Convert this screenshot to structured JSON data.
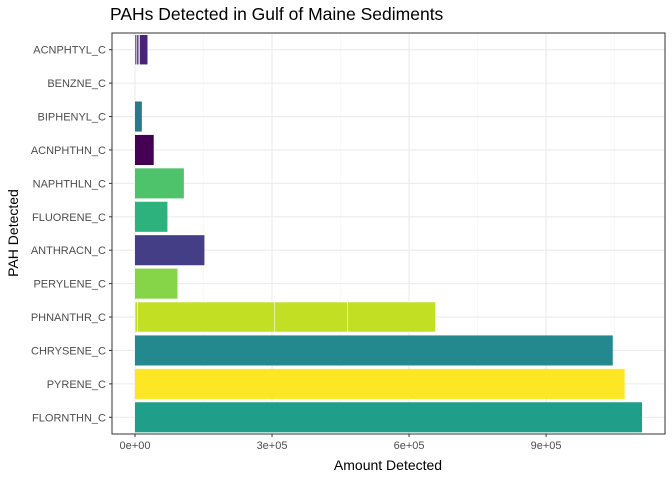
{
  "chart_data": {
    "type": "bar",
    "orientation": "horizontal",
    "title": "PAHs Detected in Gulf of Maine Sediments",
    "xlabel": "Amount Detected",
    "ylabel": "PAH Detected",
    "xlim": [
      0,
      1160000
    ],
    "x_ticks": [
      {
        "value": 0,
        "label": "0e+00"
      },
      {
        "value": 300000,
        "label": "3e+05"
      },
      {
        "value": 600000,
        "label": "6e+05"
      },
      {
        "value": 900000,
        "label": "9e+05"
      }
    ],
    "grid": true,
    "legend": "none",
    "categories": [
      "ACNPHTYL_C",
      "BENZNE_C",
      "BIPHENYL_C",
      "ACNPHTHN_C",
      "NAPHTHLN_C",
      "FLUORENE_C",
      "ANTHRACN_C",
      "PERYLENE_C",
      "PHNANTHR_C",
      "CHRYSENE_C",
      "PYRENE_C",
      "FLORNTHN_C"
    ],
    "colors": {
      "ACNPHTYL_C": "#482576",
      "BENZNE_C": "#440154",
      "BIPHENYL_C": "#2a788e",
      "ACNPHTHN_C": "#440154",
      "NAPHTHLN_C": "#4ec36b",
      "FLUORENE_C": "#2db27d",
      "ANTHRACN_C": "#433e85",
      "PERYLENE_C": "#86d549",
      "PHNANTHR_C": "#c2df23",
      "CHRYSENE_C": "#23898e",
      "PYRENE_C": "#fde725",
      "FLORNTHN_C": "#1f9e89"
    },
    "stacked_values": {
      "ACNPHTYL_C": [
        3000,
        4000,
        3000,
        18000
      ],
      "BENZNE_C": [],
      "BIPHENYL_C": [
        15000
      ],
      "ACNPHTHN_C": [
        41000
      ],
      "NAPHTHLN_C": [
        107000
      ],
      "FLUORENE_C": [
        71000
      ],
      "ANTHRACN_C": [
        152000
      ],
      "PERYLENE_C": [
        93000
      ],
      "PHNANTHR_C": [
        6000,
        300000,
        159000,
        193000
      ],
      "CHRYSENE_C": [
        1046000
      ],
      "PYRENE_C": [
        1072000
      ],
      "FLORNTHN_C": [
        1110000
      ]
    },
    "values": [
      28000,
      0,
      15000,
      41000,
      107000,
      71000,
      152000,
      93000,
      658000,
      1046000,
      1072000,
      1110000
    ]
  },
  "colors": {
    "panel_border": "#333333",
    "grid_major": "#ebebeb",
    "grid_minor": "#f5f5f5",
    "segment_separator": "#ffffff"
  }
}
